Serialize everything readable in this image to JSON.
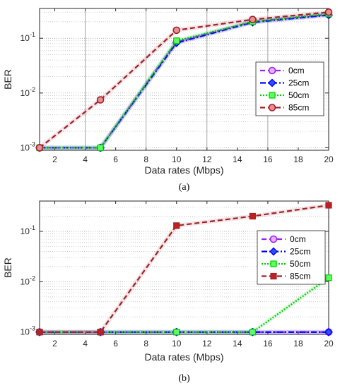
{
  "chart_data": [
    {
      "type": "line",
      "caption": "(a)",
      "xlabel": "Data rates (Mbps)",
      "ylabel": "BER",
      "xlim": [
        1,
        20
      ],
      "ylim": [
        0.0009,
        0.35
      ],
      "yscale": "log",
      "xticks": [
        "2",
        "4",
        "6",
        "8",
        "10",
        "12",
        "14",
        "16",
        "18",
        "20"
      ],
      "x": [
        1,
        5,
        10,
        15,
        20
      ],
      "legend_position": "right-middle",
      "series": [
        {
          "name": "0cm",
          "color": "#a020f0",
          "marker": "circle",
          "dash": "7,4",
          "values": [
            0.001,
            0.001,
            0.085,
            0.2,
            0.27
          ]
        },
        {
          "name": "25cm",
          "color": "#0000ff",
          "marker": "diamond",
          "dash": "8,3,2,3",
          "values": [
            0.001,
            0.001,
            0.082,
            0.195,
            0.265
          ]
        },
        {
          "name": "50cm",
          "color": "#00cc00",
          "marker": "square",
          "dash": "2,2",
          "values": [
            0.001,
            0.001,
            0.09,
            0.2,
            0.28
          ]
        },
        {
          "name": "85cm",
          "color": "#a0202a",
          "marker": "circle",
          "dash": "7,4",
          "values": [
            0.001,
            0.0075,
            0.14,
            0.22,
            0.3
          ]
        }
      ]
    },
    {
      "type": "line",
      "caption": "(b)",
      "xlabel": "Data rates (Mbps)",
      "ylabel": "BER",
      "xlim": [
        1,
        20
      ],
      "ylim": [
        0.0009,
        0.4
      ],
      "yscale": "log",
      "xticks": [
        "2",
        "4",
        "6",
        "8",
        "10",
        "12",
        "14",
        "16",
        "18",
        "20"
      ],
      "x": [
        1,
        5,
        10,
        15,
        20
      ],
      "legend_position": "right-middle",
      "series": [
        {
          "name": "0cm",
          "color": "#a020f0",
          "marker": "circle",
          "dash": "7,4",
          "values": [
            0.001,
            0.001,
            0.001,
            0.001,
            0.001
          ]
        },
        {
          "name": "25cm",
          "color": "#0000ff",
          "marker": "diamond",
          "dash": "8,3,2,3",
          "values": [
            0.001,
            0.001,
            0.001,
            0.001,
            0.001
          ]
        },
        {
          "name": "50cm",
          "color": "#00cc00",
          "marker": "square",
          "dash": "2,2",
          "values": [
            0.001,
            0.001,
            0.001,
            0.001,
            0.012
          ]
        },
        {
          "name": "85cm",
          "color": "#a0202a",
          "marker": "square",
          "dash": "7,4",
          "values": [
            0.001,
            0.001,
            0.13,
            0.2,
            0.33
          ]
        }
      ]
    }
  ]
}
